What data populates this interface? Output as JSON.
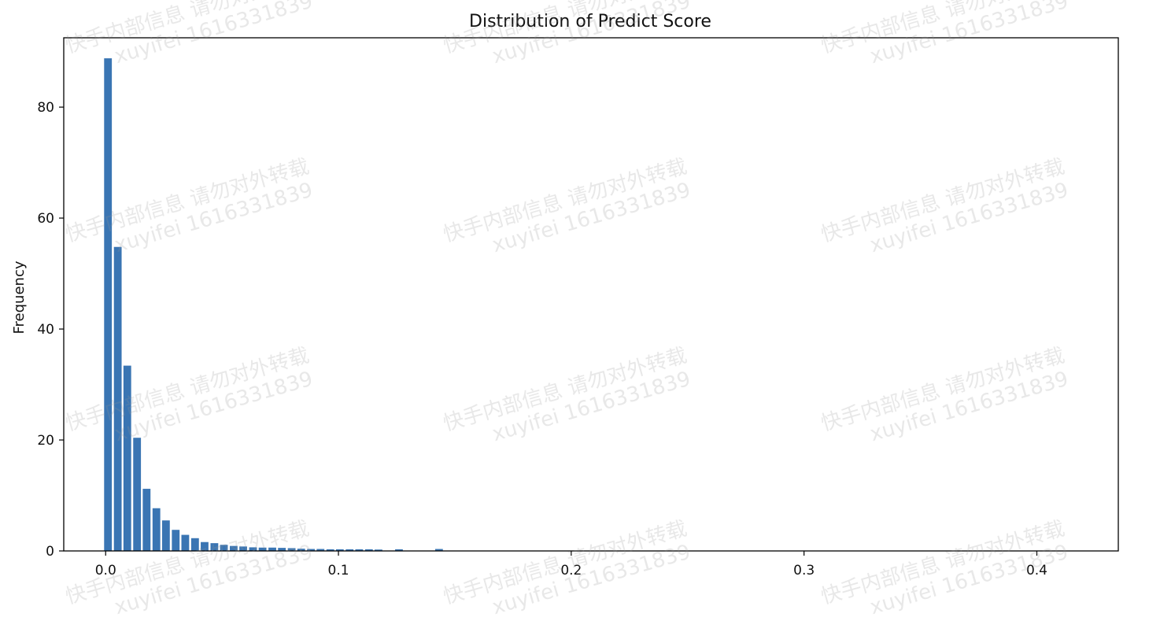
{
  "chart_data": {
    "type": "bar",
    "title": "Distribution of Predict Score",
    "xlabel": "",
    "ylabel": "Frequency",
    "xlim": [
      -0.018,
      0.435
    ],
    "ylim": [
      0,
      92.5
    ],
    "xticks": [
      0.0,
      0.1,
      0.2,
      0.3,
      0.4
    ],
    "xtick_labels": [
      "0.0",
      "0.1",
      "0.2",
      "0.3",
      "0.4"
    ],
    "yticks": [
      0,
      20,
      40,
      60,
      80
    ],
    "ytick_labels": [
      "0",
      "20",
      "40",
      "60",
      "80"
    ],
    "bin_width": 0.00415,
    "bar_color": "#3a75b3",
    "x": [
      0.001,
      0.0052,
      0.0093,
      0.0135,
      0.0176,
      0.0218,
      0.0259,
      0.0301,
      0.0342,
      0.0384,
      0.0425,
      0.0467,
      0.0508,
      0.055,
      0.0591,
      0.0633,
      0.0674,
      0.0716,
      0.0757,
      0.0799,
      0.084,
      0.0882,
      0.0923,
      0.0965,
      0.1006,
      0.1048,
      0.1089,
      0.1131,
      0.1172,
      0.126,
      0.1432
    ],
    "values": [
      88.8,
      54.8,
      33.4,
      20.4,
      11.2,
      7.7,
      5.5,
      3.8,
      2.9,
      2.3,
      1.6,
      1.4,
      1.1,
      0.9,
      0.8,
      0.65,
      0.6,
      0.6,
      0.55,
      0.5,
      0.4,
      0.35,
      0.35,
      0.3,
      0.3,
      0.3,
      0.3,
      0.3,
      0.25,
      0.3,
      0.35
    ],
    "grid": false,
    "legend": "none"
  },
  "watermark": {
    "line1": "快手内部信息 请勿对外转载",
    "line2": "xuyifei 1616331839"
  }
}
